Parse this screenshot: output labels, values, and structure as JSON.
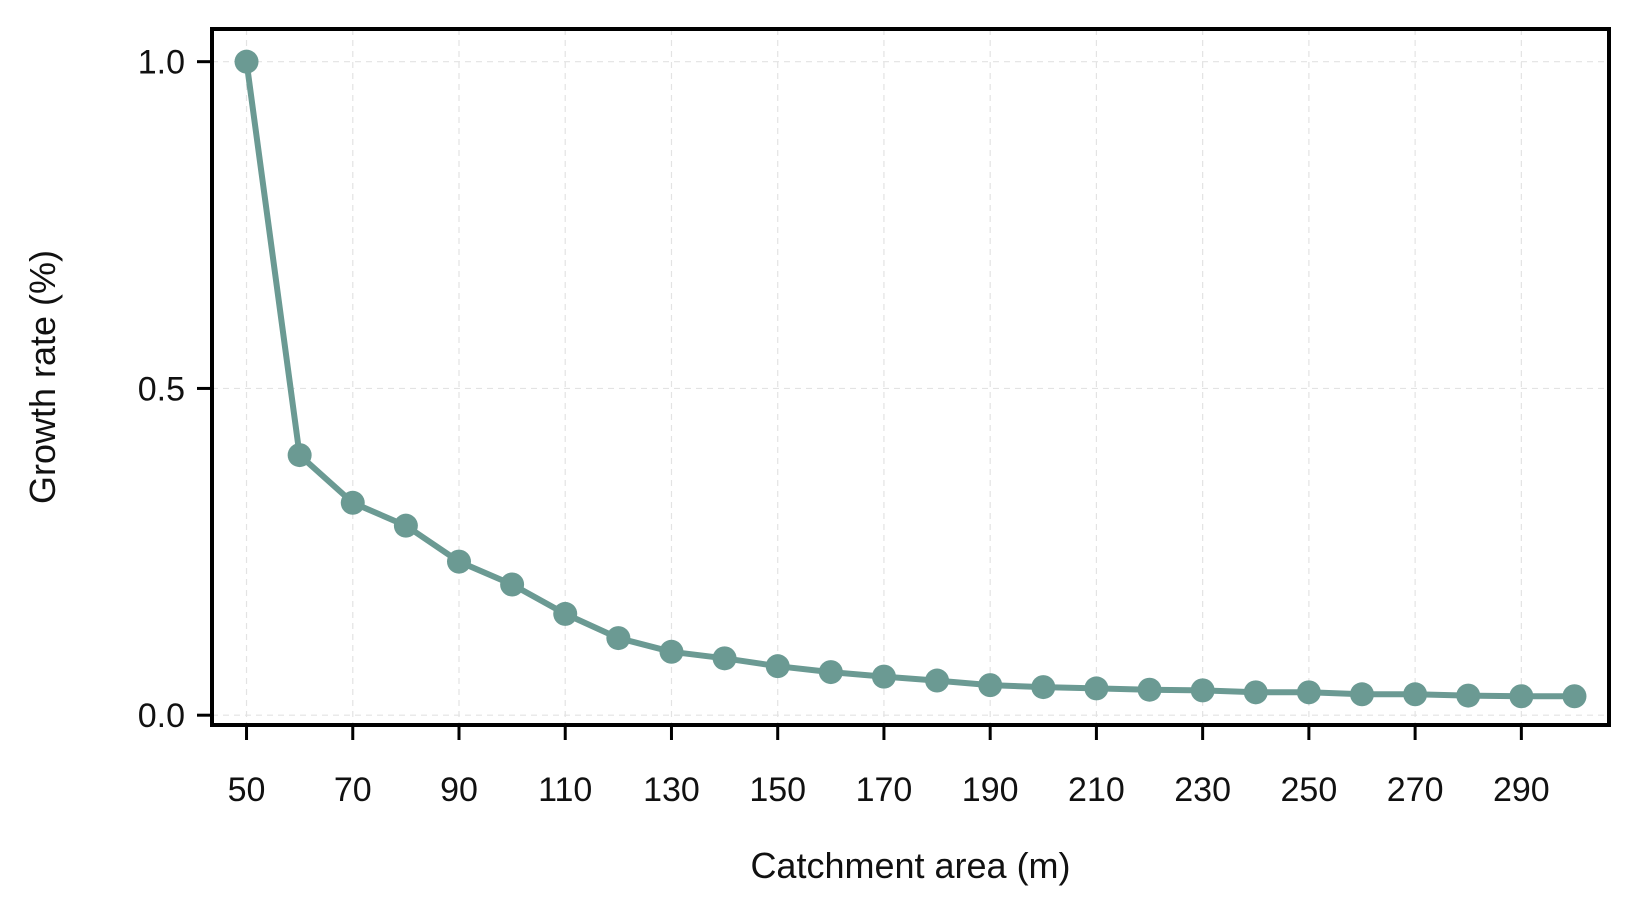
{
  "chart_data": {
    "type": "line",
    "title": "",
    "xlabel": "Catchment area (m)",
    "ylabel": "Growth rate (%)",
    "xlim": [
      43.5,
      306.5
    ],
    "ylim": [
      -0.015,
      1.05
    ],
    "xticks": [
      50,
      70,
      90,
      110,
      130,
      150,
      170,
      190,
      210,
      230,
      250,
      270,
      290
    ],
    "yticks": [
      0.0,
      0.5,
      1.0
    ],
    "ytick_labels": [
      "0.0",
      "0.5",
      "1.0"
    ],
    "grid": true,
    "series": [
      {
        "name": "Growth rate",
        "color": "#6b9a93",
        "x": [
          50,
          60,
          70,
          80,
          90,
          100,
          110,
          120,
          130,
          140,
          150,
          160,
          170,
          180,
          190,
          200,
          210,
          220,
          230,
          240,
          250,
          260,
          270,
          280,
          290,
          300
        ],
        "y": [
          1.0,
          0.398,
          0.325,
          0.29,
          0.235,
          0.2,
          0.155,
          0.118,
          0.097,
          0.087,
          0.075,
          0.066,
          0.059,
          0.053,
          0.046,
          0.043,
          0.041,
          0.039,
          0.038,
          0.035,
          0.035,
          0.032,
          0.032,
          0.03,
          0.029,
          0.029
        ]
      }
    ]
  }
}
